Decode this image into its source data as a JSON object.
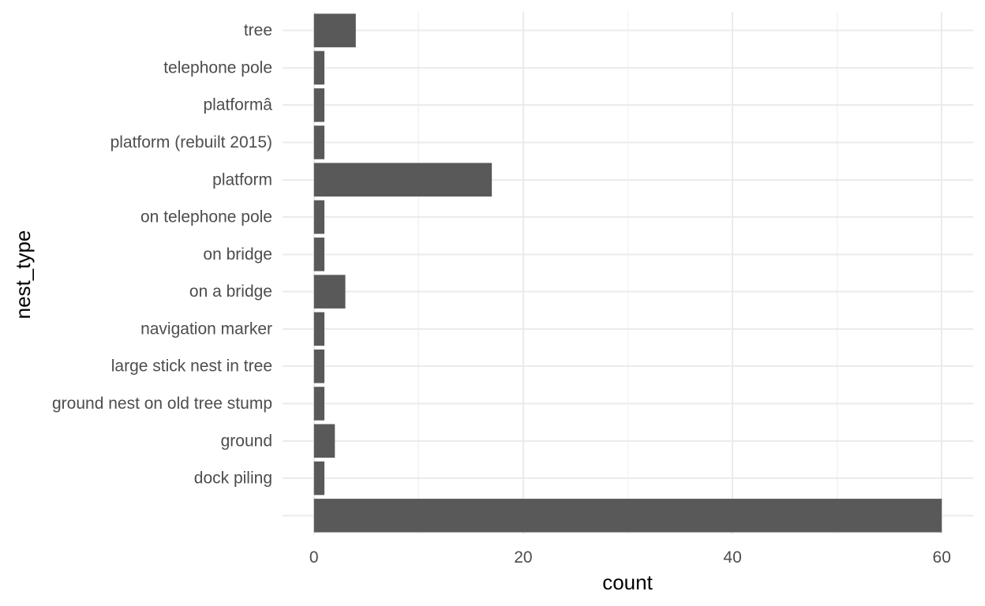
{
  "chart_data": {
    "type": "bar",
    "orientation": "horizontal",
    "xlabel": "count",
    "ylabel": "nest_type",
    "xlim": [
      -3,
      63
    ],
    "x_ticks": [
      0,
      20,
      40,
      60
    ],
    "grid": true,
    "legend": "none",
    "bar_color": "#595959",
    "categories": [
      "tree",
      "telephone pole",
      "platformâ",
      "platform (rebuilt 2015)",
      "platform",
      "on telephone pole",
      "on bridge",
      "on a bridge",
      "navigation marker",
      "large stick nest in tree",
      "ground nest on old tree stump",
      "ground",
      "dock piling",
      ""
    ],
    "values": [
      4,
      1,
      1,
      1,
      17,
      1,
      1,
      3,
      1,
      1,
      1,
      2,
      1,
      60
    ]
  }
}
